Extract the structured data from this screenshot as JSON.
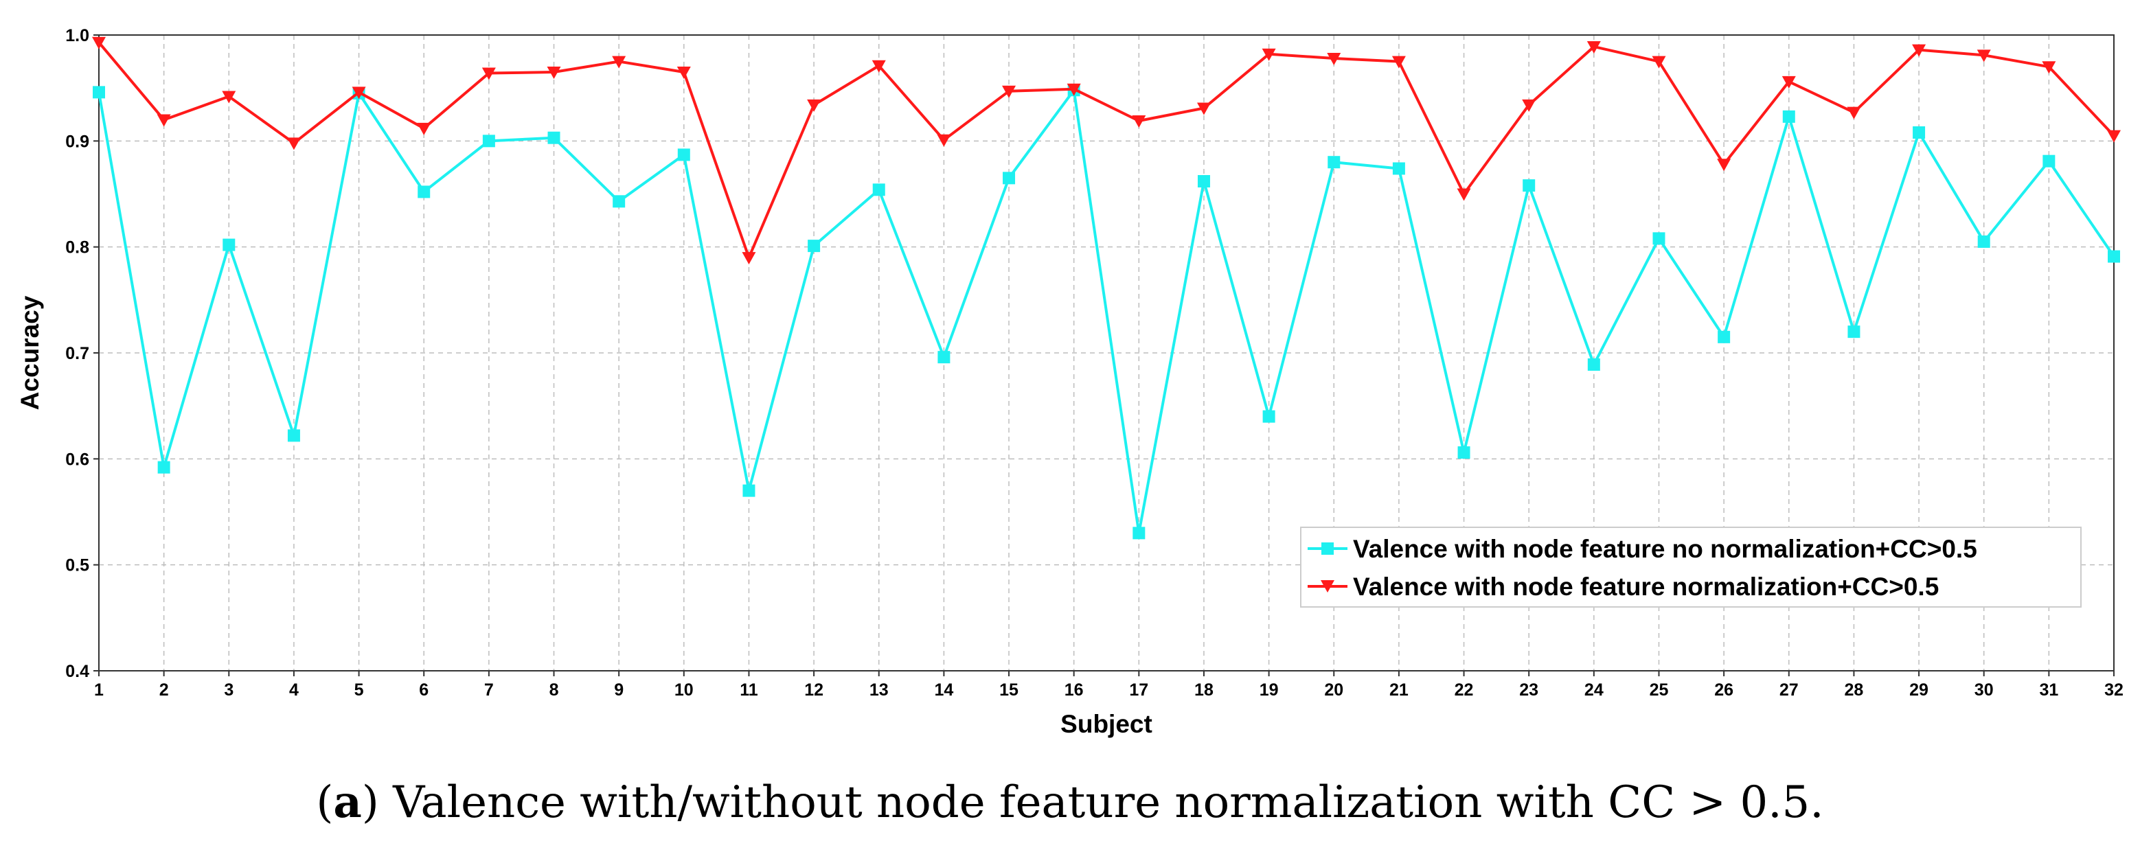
{
  "chart_data": {
    "type": "line",
    "xlabel": "Subject",
    "ylabel": "Accuracy",
    "xlim": [
      1,
      32
    ],
    "ylim": [
      0.4,
      1.0
    ],
    "yticks": [
      0.4,
      0.5,
      0.6,
      0.7,
      0.8,
      0.9,
      1.0
    ],
    "ytick_labels": [
      "0.4",
      "0.5",
      "0.6",
      "0.7",
      "0.8",
      "0.9",
      "1.0"
    ],
    "x": [
      1,
      2,
      3,
      4,
      5,
      6,
      7,
      8,
      9,
      10,
      11,
      12,
      13,
      14,
      15,
      16,
      17,
      18,
      19,
      20,
      21,
      22,
      23,
      24,
      25,
      26,
      27,
      28,
      29,
      30,
      31,
      32
    ],
    "x_labels": [
      "1",
      "2",
      "3",
      "4",
      "5",
      "6",
      "7",
      "8",
      "9",
      "10",
      "11",
      "12",
      "13",
      "14",
      "15",
      "16",
      "17",
      "18",
      "19",
      "20",
      "21",
      "22",
      "23",
      "24",
      "25",
      "26",
      "27",
      "28",
      "29",
      "30",
      "31",
      "32"
    ],
    "grid": true,
    "legend_position": "lower-right",
    "series": [
      {
        "name": "Valence with node feature no normalization+CC>0.5",
        "color": "#1ef0f0",
        "marker": "square",
        "values": [
          0.946,
          0.592,
          0.802,
          0.622,
          0.945,
          0.852,
          0.9,
          0.903,
          0.843,
          0.887,
          0.57,
          0.801,
          0.854,
          0.696,
          0.865,
          0.948,
          0.53,
          0.862,
          0.64,
          0.88,
          0.874,
          0.606,
          0.858,
          0.689,
          0.808,
          0.715,
          0.923,
          0.72,
          0.908,
          0.805,
          0.881,
          0.791
        ]
      },
      {
        "name": "Valence with node feature normalization+CC>0.5",
        "color": "#ff1a1a",
        "marker": "triangle-down",
        "values": [
          0.993,
          0.92,
          0.942,
          0.898,
          0.946,
          0.912,
          0.964,
          0.965,
          0.975,
          0.965,
          0.79,
          0.934,
          0.971,
          0.901,
          0.947,
          0.949,
          0.919,
          0.931,
          0.982,
          0.978,
          0.975,
          0.85,
          0.934,
          0.989,
          0.975,
          0.878,
          0.956,
          0.927,
          0.986,
          0.981,
          0.97,
          0.905
        ]
      }
    ]
  },
  "caption": {
    "label": "a",
    "text": "Valence with/without node feature normalization with CC > 0.5."
  }
}
